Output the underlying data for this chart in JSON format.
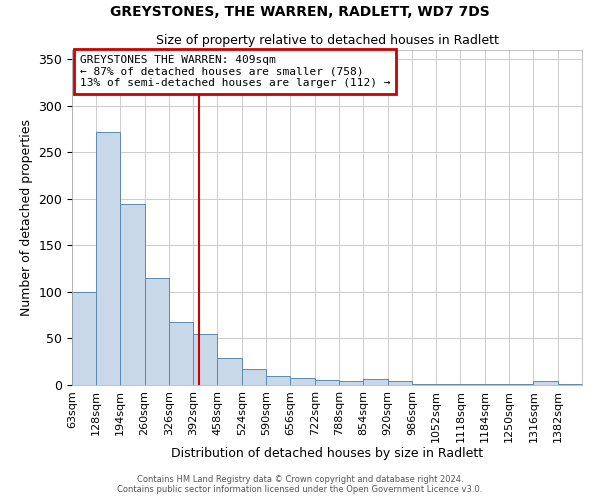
{
  "title": "GREYSTONES, THE WARREN, RADLETT, WD7 7DS",
  "subtitle": "Size of property relative to detached houses in Radlett",
  "xlabel": "Distribution of detached houses by size in Radlett",
  "ylabel": "Number of detached properties",
  "bin_labels": [
    "63sqm",
    "128sqm",
    "194sqm",
    "260sqm",
    "326sqm",
    "392sqm",
    "458sqm",
    "524sqm",
    "590sqm",
    "656sqm",
    "722sqm",
    "788sqm",
    "854sqm",
    "920sqm",
    "986sqm",
    "1052sqm",
    "1118sqm",
    "1184sqm",
    "1250sqm",
    "1316sqm",
    "1382sqm"
  ],
  "bin_edges": [
    63,
    128,
    194,
    260,
    326,
    392,
    458,
    524,
    590,
    656,
    722,
    788,
    854,
    920,
    986,
    1052,
    1118,
    1184,
    1250,
    1316,
    1382,
    1448
  ],
  "counts": [
    100,
    272,
    195,
    115,
    68,
    55,
    29,
    17,
    10,
    8,
    5,
    4,
    6,
    4,
    1,
    1,
    1,
    1,
    1,
    4,
    1
  ],
  "bar_color": "#c8d8e8",
  "bar_edge_color": "#5a8ab0",
  "grid_color": "#cccccc",
  "background_color": "#ffffff",
  "red_line_x": 409,
  "annotation_line1": "GREYSTONES THE WARREN: 409sqm",
  "annotation_line2": "← 87% of detached houses are smaller (758)",
  "annotation_line3": "13% of semi-detached houses are larger (112) →",
  "annotation_box_color": "#cc0000",
  "ylim": [
    0,
    360
  ],
  "yticks": [
    0,
    50,
    100,
    150,
    200,
    250,
    300,
    350
  ],
  "footer_line1": "Contains HM Land Registry data © Crown copyright and database right 2024.",
  "footer_line2": "Contains public sector information licensed under the Open Government Licence v3.0."
}
